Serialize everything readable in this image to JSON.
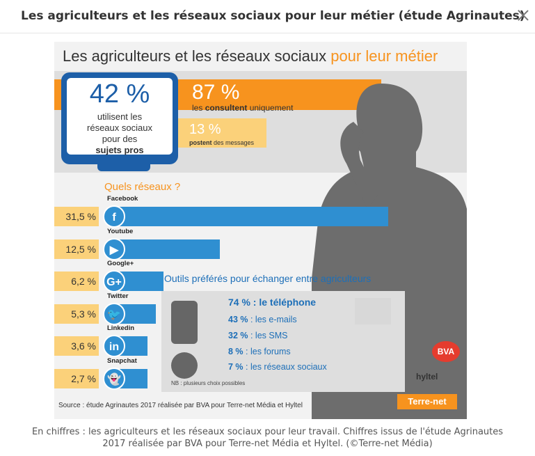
{
  "header": {
    "title": "Les agriculteurs et les réseaux sociaux pour leur métier (étude Agrinautes)"
  },
  "infographic": {
    "title_main": "Les agriculteurs et les réseaux sociaux ",
    "title_accent": "pour leur métier",
    "usage": {
      "pct": "42 %",
      "line1": "utilisent les",
      "line2": "réseaux sociaux",
      "line3": "pour des",
      "line4": "sujets pros"
    },
    "consult": {
      "pct": "87 %",
      "prefix": "les ",
      "bold": "consultent",
      "suffix": " uniquement"
    },
    "post": {
      "pct": "13 %",
      "bold": "postent",
      "suffix": " des messages"
    },
    "networks_title": "Quels réseaux ?",
    "networks": [
      {
        "name": "Facebook",
        "pct": "31,5 %",
        "value": 31.5,
        "glyph": "f"
      },
      {
        "name": "Youtube",
        "pct": "12,5 %",
        "value": 12.5,
        "glyph": "▶"
      },
      {
        "name": "Google+",
        "pct": "6,2 %",
        "value": 6.2,
        "glyph": "G+"
      },
      {
        "name": "Twitter",
        "pct": "5,3 %",
        "value": 5.3,
        "glyph": "🐦"
      },
      {
        "name": "Linkedin",
        "pct": "3,6 %",
        "value": 3.6,
        "glyph": "in"
      },
      {
        "name": "Snapchat",
        "pct": "2,7 %",
        "value": 2.7,
        "glyph": "👻"
      }
    ],
    "tools_title": "Outils préférés pour échanger entre agriculteurs",
    "tools": [
      {
        "pct": "74 %",
        "label": " : le téléphone"
      },
      {
        "pct": "43 %",
        "label": " : les e-mails"
      },
      {
        "pct": "32 %",
        "label": " : les SMS"
      },
      {
        "pct": "8 %",
        "label": " : les forums"
      },
      {
        "pct": "7 %",
        "label": " : les réseaux sociaux"
      }
    ],
    "tools_note": "NB : plusieurs choix possibles",
    "logos": {
      "bva": "BVA",
      "hyltel": "hyltel",
      "terrenet": "Terre-net"
    },
    "source": "Source : étude Agrinautes 2017 réalisée par BVA pour Terre-net Média et Hyltel"
  },
  "caption": {
    "line1": "En chiffres : les agriculteurs et les réseaux sociaux pour leur travail. Chiffres issus de l'étude Agrinautes",
    "line2": "2017 réalisée par BVA pour Terre-net Média et Hyltel. (©Terre-net Média)"
  }
}
